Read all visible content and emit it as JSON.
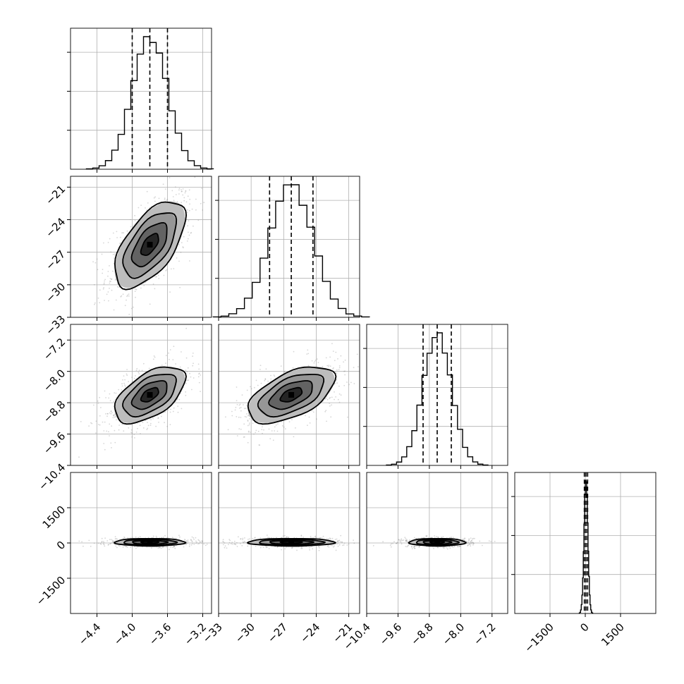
{
  "chart_data": {
    "type": "corner",
    "grid": true,
    "params": [
      {
        "mean": -3.8,
        "sd": 0.2,
        "range": [
          -4.7,
          -3.1
        ],
        "ticks": [
          -4.4,
          -4.0,
          -3.6,
          -3.2
        ],
        "tick_labels": [
          "−4.4",
          "−4.0",
          "−3.6",
          "−3.2"
        ],
        "quantiles": [
          -4.0,
          -3.8,
          -3.6
        ]
      },
      {
        "mean": -26.3,
        "sd": 2.0,
        "range": [
          -33,
          -20
        ],
        "ticks": [
          -33,
          -30,
          -27,
          -24,
          -21
        ],
        "tick_labels": [
          "−33",
          "−30",
          "−27",
          "−24",
          "−21"
        ],
        "quantiles": [
          -28.3,
          -26.3,
          -24.3
        ]
      },
      {
        "mean": -8.6,
        "sd": 0.36,
        "range": [
          -10.4,
          -6.8
        ],
        "ticks": [
          -10.4,
          -9.6,
          -8.8,
          -8.0,
          -7.2
        ],
        "tick_labels": [
          "−10.4",
          "−9.6",
          "−8.8",
          "−8.0",
          "−7.2"
        ],
        "quantiles": [
          -8.96,
          -8.6,
          -8.24
        ]
      },
      {
        "mean": 30,
        "sd": 80,
        "range": [
          -3000,
          3000
        ],
        "ticks": [
          -1500,
          0,
          1500
        ],
        "tick_labels": [
          "−1500",
          "0",
          "1500"
        ],
        "quantiles": [
          -40,
          30,
          100
        ]
      }
    ],
    "correlations": [
      [
        0,
        1,
        0.6
      ],
      [
        0,
        2,
        0.55
      ],
      [
        1,
        2,
        0.55
      ],
      [
        0,
        3,
        0
      ],
      [
        1,
        3,
        0
      ],
      [
        2,
        3,
        0
      ]
    ],
    "hist_bins": 20,
    "hist_yticks": 3,
    "contour_levels": [
      0.5,
      1.0,
      1.5,
      2.0
    ]
  }
}
